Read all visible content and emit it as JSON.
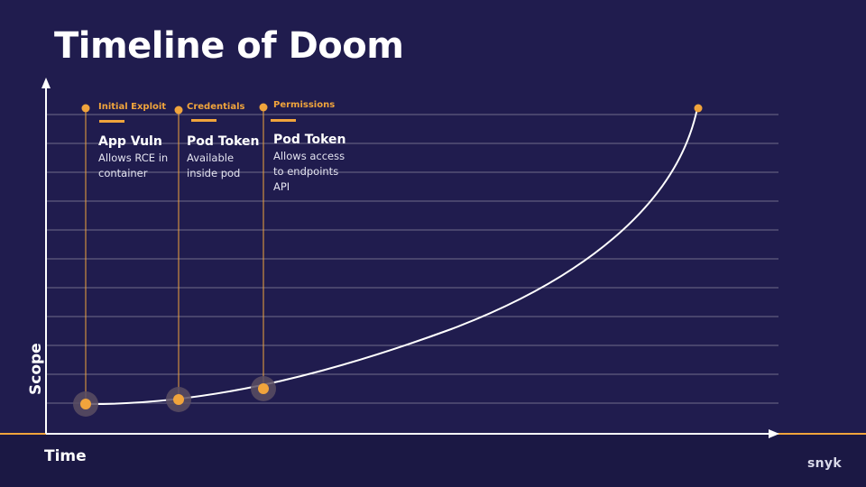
{
  "title": "Timeline of Doom",
  "axes": {
    "x_label": "Time",
    "y_label": "Scope"
  },
  "stages": [
    {
      "tag": "Initial Exploit",
      "title": "App Vuln",
      "lines": [
        "Allows RCE in",
        "container"
      ]
    },
    {
      "tag": "Credentials",
      "title": "Pod Token",
      "lines": [
        "Available",
        "inside pod"
      ]
    },
    {
      "tag": "Permissions",
      "title": "Pod Token",
      "lines": [
        "Allows access",
        "to endpoints",
        "API"
      ]
    }
  ],
  "logo": "snyk",
  "colors": {
    "background": "#201c4e",
    "accent": "#f0a43c",
    "grid": "#6f6c8a",
    "curve": "#ffffff"
  },
  "icons": [
    "x-axis-arrow-icon",
    "y-axis-arrow-icon",
    "timeline-dot-icon"
  ]
}
